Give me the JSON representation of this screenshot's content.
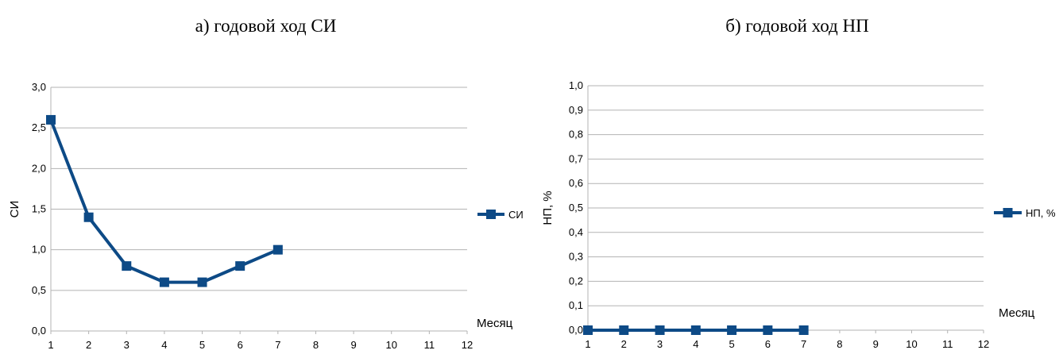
{
  "chart_data": [
    {
      "type": "line",
      "title": "а) годовой ход СИ",
      "xlabel": "Месяц",
      "ylabel": "СИ",
      "x_ticks": [
        "1",
        "2",
        "3",
        "4",
        "5",
        "6",
        "7",
        "8",
        "9",
        "10",
        "11",
        "12"
      ],
      "y_ticks": [
        "0,0",
        "0,5",
        "1,0",
        "1,5",
        "2,0",
        "2,5",
        "3,0"
      ],
      "xlim": [
        1,
        12
      ],
      "ylim": [
        0,
        3
      ],
      "grid": true,
      "legend_position": "right",
      "series": [
        {
          "name": "СИ",
          "color": "#0d4a86",
          "x": [
            1,
            2,
            3,
            4,
            5,
            6,
            7
          ],
          "values": [
            2.6,
            1.4,
            0.8,
            0.6,
            0.6,
            0.8,
            1.0
          ]
        }
      ]
    },
    {
      "type": "line",
      "title": "б) годовой ход НП",
      "xlabel": "Месяц",
      "ylabel": "НП, %",
      "x_ticks": [
        "1",
        "2",
        "3",
        "4",
        "5",
        "6",
        "7",
        "8",
        "9",
        "10",
        "11",
        "12"
      ],
      "y_ticks": [
        "0,0",
        "0,1",
        "0,2",
        "0,3",
        "0,4",
        "0,5",
        "0,6",
        "0,7",
        "0,8",
        "0,9",
        "1,0"
      ],
      "xlim": [
        1,
        12
      ],
      "ylim": [
        0,
        1
      ],
      "grid": true,
      "legend_position": "right",
      "series": [
        {
          "name": "НП, %",
          "color": "#0d4a86",
          "x": [
            1,
            2,
            3,
            4,
            5,
            6,
            7
          ],
          "values": [
            0,
            0,
            0,
            0,
            0,
            0,
            0
          ]
        }
      ]
    }
  ]
}
